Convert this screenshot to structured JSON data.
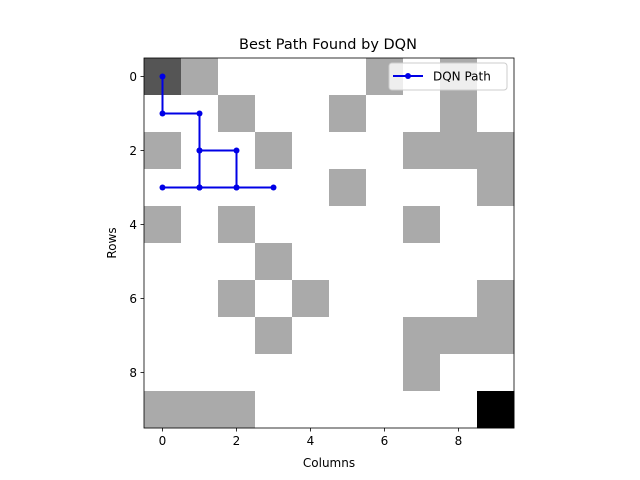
{
  "chart_data": {
    "type": "heatmap",
    "title": "Best Path Found by DQN",
    "xlabel": "Columns",
    "ylabel": "Rows",
    "x_ticks": [
      0,
      2,
      4,
      6,
      8
    ],
    "y_ticks": [
      0,
      2,
      4,
      6,
      8
    ],
    "xlim": [
      -0.5,
      9.5
    ],
    "ylim": [
      9.5,
      -0.5
    ],
    "grid_size": [
      10,
      10
    ],
    "grid": [
      [
        3,
        1,
        0,
        0,
        0,
        0,
        1,
        0,
        1,
        0
      ],
      [
        0,
        0,
        1,
        0,
        0,
        1,
        0,
        0,
        1,
        0
      ],
      [
        1,
        0,
        0,
        1,
        0,
        0,
        0,
        1,
        1,
        1
      ],
      [
        0,
        0,
        0,
        0,
        0,
        1,
        0,
        0,
        0,
        1
      ],
      [
        1,
        0,
        1,
        0,
        0,
        0,
        0,
        1,
        0,
        0
      ],
      [
        0,
        0,
        0,
        1,
        0,
        0,
        0,
        0,
        0,
        0
      ],
      [
        0,
        0,
        1,
        0,
        1,
        0,
        0,
        0,
        0,
        1
      ],
      [
        0,
        0,
        0,
        1,
        0,
        0,
        0,
        1,
        1,
        1
      ],
      [
        0,
        0,
        0,
        0,
        0,
        0,
        0,
        1,
        0,
        0
      ],
      [
        1,
        1,
        1,
        0,
        0,
        0,
        0,
        0,
        0,
        2
      ]
    ],
    "cell_colors": {
      "0": "#ffffff",
      "1": "#aaaaaa",
      "2": "#000000",
      "3": "#555555"
    },
    "series": [
      {
        "name": "DQN Path",
        "color": "#0000e6",
        "points": [
          [
            0,
            0
          ],
          [
            0,
            1
          ],
          [
            1,
            1
          ],
          [
            1,
            2
          ],
          [
            1,
            3
          ],
          [
            0,
            3
          ],
          [
            1,
            3
          ],
          [
            2,
            3
          ],
          [
            2,
            2
          ],
          [
            1,
            2
          ],
          [
            1,
            3
          ],
          [
            2,
            3
          ],
          [
            3,
            3
          ]
        ]
      }
    ],
    "legend_position": "upper right"
  }
}
